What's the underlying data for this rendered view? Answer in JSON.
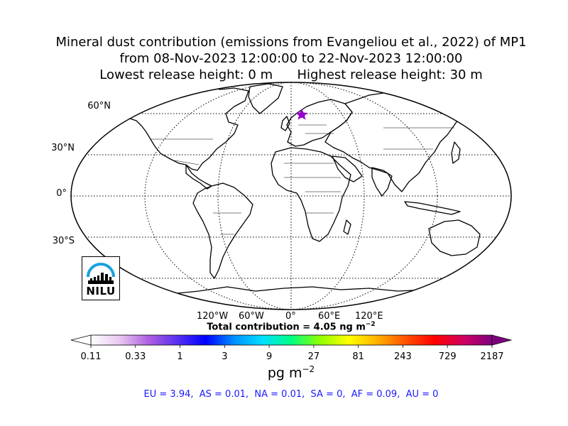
{
  "title": {
    "line1": "Mineral dust contribution (emissions from Evangeliou et al., 2022) of MP1",
    "line2": "from 08-Nov-2023 12:00:00 to 22-Nov-2023 12:00:00",
    "line3": "Lowest release height: 0 m      Highest release height: 30 m"
  },
  "map": {
    "projection": "Robinson",
    "lat_labels": [
      "60°N",
      "30°N",
      "0°",
      "30°S"
    ],
    "lon_labels": [
      "120°W",
      "60°W",
      "0°",
      "60°E",
      "120°E"
    ],
    "release_marker": {
      "lat": 59.9,
      "lon": 10.8,
      "symbol": "star",
      "color": "#9900cc"
    }
  },
  "logo": {
    "text": "NILU",
    "accent_color": "#1aa0e0"
  },
  "total_contribution": "Total contribution = 4.05 ng m",
  "total_unit_exp": "−2",
  "colorbar": {
    "ticks": [
      "0.11",
      "0.33",
      "1",
      "3",
      "9",
      "27",
      "81",
      "243",
      "729",
      "2187"
    ],
    "units": "pg m",
    "units_exp": "−2",
    "scale": "log",
    "colors": [
      "#ffffff",
      "#e8c8f0",
      "#b060e0",
      "#5a30f0",
      "#0000ff",
      "#0090ff",
      "#00e0ff",
      "#00ff80",
      "#90ff00",
      "#ffff00",
      "#ffb000",
      "#ff5000",
      "#ff0000",
      "#d00060",
      "#800080"
    ]
  },
  "regional_summary": "EU = 3.94,  AS = 0.01,  NA = 0.01,  SA = 0,  AF = 0.09,  AU = 0"
}
